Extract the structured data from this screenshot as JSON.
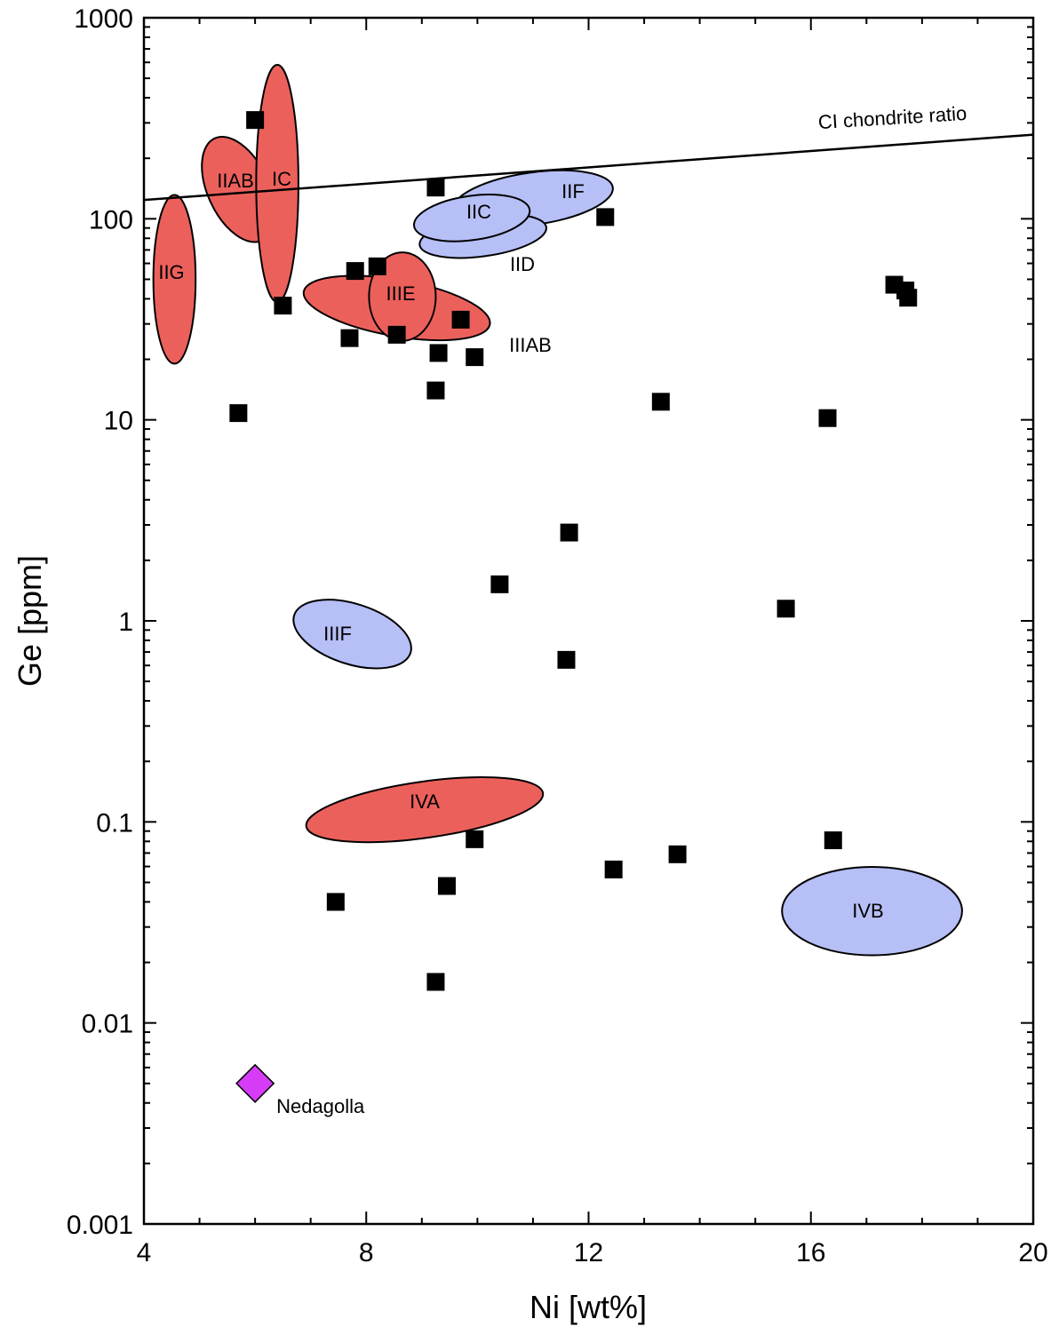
{
  "chart_data": {
    "type": "scatter",
    "xlabel": "Ni [wt%]",
    "ylabel": "Ge [ppm]",
    "xlim": [
      4,
      20
    ],
    "ylim": [
      0.001,
      1000
    ],
    "yscale": "log",
    "x_ticks": [
      4,
      8,
      12,
      16,
      20
    ],
    "x_tick_labels": [
      "4",
      "8",
      "12",
      "16",
      "20"
    ],
    "y_ticks": [
      0.001,
      0.01,
      0.1,
      1,
      10,
      100,
      1000
    ],
    "y_tick_labels": [
      "0.001",
      "0.01",
      "0.1",
      "1",
      "10",
      "100",
      "1000"
    ],
    "grid": false,
    "colors": {
      "red_group": "#ec605c",
      "blue_group": "#b6bff6",
      "marker": "#000000",
      "nedagolla": "#d63cf5"
    },
    "reference_line": {
      "label": "CI chondrite ratio",
      "x": [
        4,
        20
      ],
      "y": [
        124,
        262
      ]
    },
    "points": [
      {
        "x": 6.0,
        "y": 310
      },
      {
        "x": 9.25,
        "y": 143
      },
      {
        "x": 12.3,
        "y": 102
      },
      {
        "x": 7.8,
        "y": 55
      },
      {
        "x": 8.2,
        "y": 58
      },
      {
        "x": 6.5,
        "y": 37
      },
      {
        "x": 9.7,
        "y": 31.5
      },
      {
        "x": 7.7,
        "y": 25.5
      },
      {
        "x": 8.55,
        "y": 26.5
      },
      {
        "x": 9.3,
        "y": 21.5
      },
      {
        "x": 9.95,
        "y": 20.5
      },
      {
        "x": 9.25,
        "y": 14
      },
      {
        "x": 5.7,
        "y": 10.8
      },
      {
        "x": 13.3,
        "y": 12.3
      },
      {
        "x": 16.3,
        "y": 10.2
      },
      {
        "x": 17.5,
        "y": 47
      },
      {
        "x": 17.7,
        "y": 44
      },
      {
        "x": 17.75,
        "y": 40.5
      },
      {
        "x": 11.65,
        "y": 2.75
      },
      {
        "x": 10.4,
        "y": 1.52
      },
      {
        "x": 15.55,
        "y": 1.15
      },
      {
        "x": 11.6,
        "y": 0.64
      },
      {
        "x": 9.95,
        "y": 0.082
      },
      {
        "x": 16.4,
        "y": 0.081
      },
      {
        "x": 13.6,
        "y": 0.069
      },
      {
        "x": 12.45,
        "y": 0.058
      },
      {
        "x": 9.45,
        "y": 0.048
      },
      {
        "x": 7.45,
        "y": 0.04
      },
      {
        "x": 9.25,
        "y": 0.016
      }
    ],
    "highlight": {
      "label": "Nedagolla",
      "x": 6.0,
      "y": 0.005
    },
    "regions": [
      {
        "label": "IIAB",
        "group": "red",
        "cx": 5.7,
        "cy": 140,
        "rx_ni": 0.55,
        "ry_dec": 0.28,
        "rot": -25
      },
      {
        "label": "IC",
        "group": "red",
        "cx": 6.4,
        "cy": 150,
        "rx_ni": 0.38,
        "ry_dec": 0.59,
        "rot": 0
      },
      {
        "label": "IIG",
        "group": "red",
        "cx": 4.55,
        "cy": 50,
        "rx_ni": 0.38,
        "ry_dec": 0.42,
        "rot": 0
      },
      {
        "label": "IIIAB",
        "group": "red",
        "cx": 8.55,
        "cy": 36,
        "rx_ni": 1.7,
        "ry_dec": 0.14,
        "rot": 10
      },
      {
        "label": "IIIE",
        "group": "red",
        "cx": 8.65,
        "cy": 41,
        "rx_ni": 0.6,
        "ry_dec": 0.22,
        "rot": 0
      },
      {
        "label": "IVA",
        "group": "red",
        "cx": 9.05,
        "cy": 0.115,
        "rx_ni": 2.15,
        "ry_dec": 0.14,
        "rot": -8
      },
      {
        "label": "IIF",
        "group": "blue",
        "cx": 11.0,
        "cy": 126,
        "rx_ni": 1.45,
        "ry_dec": 0.13,
        "rot": -8
      },
      {
        "label": "IID",
        "group": "blue",
        "cx": 10.1,
        "cy": 82,
        "rx_ni": 1.15,
        "ry_dec": 0.1,
        "rot": -8
      },
      {
        "label": "IIC",
        "group": "blue",
        "cx": 9.9,
        "cy": 101,
        "rx_ni": 1.05,
        "ry_dec": 0.11,
        "rot": -8
      },
      {
        "label": "IIIF",
        "group": "blue",
        "cx": 7.75,
        "cy": 0.86,
        "rx_ni": 1.1,
        "ry_dec": 0.15,
        "rot": 18
      },
      {
        "label": "IVB",
        "group": "blue",
        "cx": 17.1,
        "cy": 0.036,
        "rx_ni": 1.62,
        "ry_dec": 0.22,
        "rot": 0
      }
    ]
  }
}
